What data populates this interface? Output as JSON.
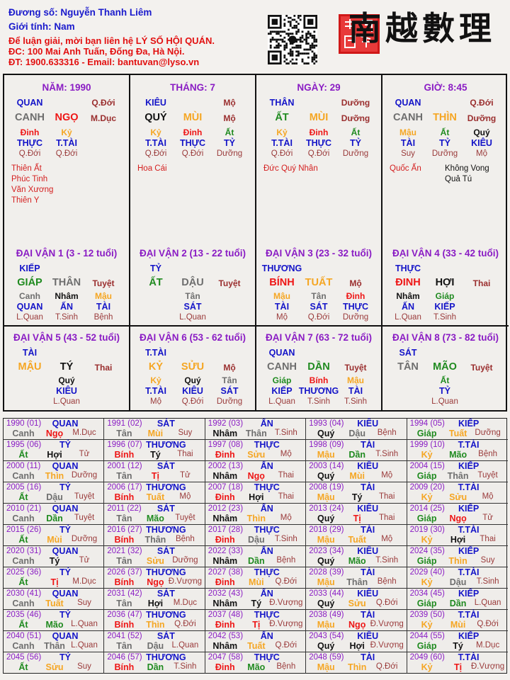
{
  "header": {
    "name_line": "Đương số: Nguyễn Thanh Liêm",
    "gender_line": "Giới tính:   Nam",
    "contact_line": "Để luận giải, mời bạn liên hệ LÝ SỐ HỘI QUÁN.",
    "address_line": "ĐC: 100 Mai Anh Tuấn, Đống Đa, Hà Nội.",
    "phone_line": "ĐT: 1900.633316 - Email: bantuvan@lyso.vn"
  },
  "logo": {
    "text": "南越數理",
    "qr_icon": "qr-code"
  },
  "element_colors": {
    "wood": "#1f8a1f",
    "fire": "#ee1515",
    "earth": "#f5a623",
    "metal": "#6e6e6e",
    "water": "#111111"
  },
  "pillars": [
    {
      "title": "NĂM: 1990",
      "god": "QUAN",
      "god_stage": "Q.Đới",
      "stem": "CANH",
      "branch": "NGỌ",
      "branch_stage": "M.Dục",
      "hidden": [
        {
          "stem": "Đinh",
          "god": "THỰC",
          "stage": "Q.Đới"
        },
        {
          "stem": "Kỷ",
          "god": "T.TÀI",
          "stage": "Q.Đới"
        }
      ],
      "stars": [
        "Thiên Ất",
        "Phúc Tinh",
        "Văn Xương",
        "Thiên Y"
      ],
      "stars_right": []
    },
    {
      "title": "THÁNG: 7",
      "god": "KIÊU",
      "god_stage": "Mộ",
      "stem": "QUÝ",
      "branch": "MÙI",
      "branch_stage": "Mộ",
      "hidden": [
        {
          "stem": "Kỷ",
          "god": "T.TÀI",
          "stage": "Q.Đới"
        },
        {
          "stem": "Đinh",
          "god": "THỰC",
          "stage": "Q.Đới"
        },
        {
          "stem": "Ất",
          "god": "TỶ",
          "stage": "Dưỡng"
        }
      ],
      "stars": [
        "Hoa Cái"
      ],
      "stars_right": []
    },
    {
      "title": "NGÀY: 29",
      "god": "THÂN",
      "god_stage": "Dưỡng",
      "stem": "ẤT",
      "branch": "MÙI",
      "branch_stage": "Dưỡng",
      "hidden": [
        {
          "stem": "Kỷ",
          "god": "T.TÀI",
          "stage": "Q.Đới"
        },
        {
          "stem": "Đinh",
          "god": "THỰC",
          "stage": "Q.Đới"
        },
        {
          "stem": "Ất",
          "god": "TỶ",
          "stage": "Dưỡng"
        }
      ],
      "stars": [
        "Đức Quý Nhân"
      ],
      "stars_right": []
    },
    {
      "title": "GIỜ: 8:45",
      "god": "QUAN",
      "god_stage": "Q.Đới",
      "stem": "CANH",
      "branch": "THÌN",
      "branch_stage": "Dưỡng",
      "hidden": [
        {
          "stem": "Mậu",
          "god": "TÀI",
          "stage": "Suy"
        },
        {
          "stem": "Ất",
          "god": "TỶ",
          "stage": "Dưỡng"
        },
        {
          "stem": "Quý",
          "god": "KIÊU",
          "stage": "Mộ"
        }
      ],
      "stars": [
        "Quốc Ấn"
      ],
      "stars_right": [
        "Không Vong",
        "Quả Tú"
      ]
    }
  ],
  "dai_van": [
    {
      "title": "ĐẠI VẬN 1 (3 - 12 tuổi)",
      "god": "KIẾP",
      "stem": "GIÁP",
      "branch": "THÂN",
      "branch_stage": "Tuyệt",
      "hidden": [
        {
          "stem": "Canh",
          "god": "QUAN",
          "stage": "L.Quan"
        },
        {
          "stem": "Nhâm",
          "god": "ẤN",
          "stage": "T.Sinh"
        },
        {
          "stem": "Mậu",
          "god": "TÀI",
          "stage": "Bệnh"
        }
      ]
    },
    {
      "title": "ĐẠI VẬN 2 (13 - 22 tuổi)",
      "god": "TỶ",
      "stem": "ẤT",
      "branch": "DẬU",
      "branch_stage": "Tuyệt",
      "hidden": [
        {
          "stem": "Tân",
          "god": "SÁT",
          "stage": "L.Quan"
        }
      ]
    },
    {
      "title": "ĐẠI VẬN 3 (23 - 32 tuổi)",
      "god": "THƯƠNG",
      "stem": "BÍNH",
      "branch": "TUẤT",
      "branch_stage": "Mộ",
      "hidden": [
        {
          "stem": "Mậu",
          "god": "TÀI",
          "stage": "Mộ"
        },
        {
          "stem": "Tân",
          "god": "SÁT",
          "stage": "Q.Đới"
        },
        {
          "stem": "Đinh",
          "god": "THỰC",
          "stage": "Dưỡng"
        }
      ]
    },
    {
      "title": "ĐẠI VẬN 4 (33 - 42 tuổi)",
      "god": "THỰC",
      "stem": "ĐINH",
      "branch": "HỢI",
      "branch_stage": "Thai",
      "hidden": [
        {
          "stem": "Nhâm",
          "god": "ẤN",
          "stage": "L.Quan"
        },
        {
          "stem": "Giáp",
          "god": "KIẾP",
          "stage": "T.Sinh"
        }
      ]
    },
    {
      "title": "ĐẠI VẬN 5 (43 - 52 tuổi)",
      "god": "TÀI",
      "stem": "MẬU",
      "branch": "TÝ",
      "branch_stage": "Thai",
      "hidden": [
        {
          "stem": "Quý",
          "god": "KIÊU",
          "stage": "L.Quan"
        }
      ]
    },
    {
      "title": "ĐẠI VẬN 6 (53 - 62 tuổi)",
      "god": "T.TÀI",
      "stem": "KỶ",
      "branch": "SỬU",
      "branch_stage": "Mộ",
      "hidden": [
        {
          "stem": "Kỷ",
          "god": "T.TÀI",
          "stage": "Mộ"
        },
        {
          "stem": "Quý",
          "god": "KIÊU",
          "stage": "Q.Đới"
        },
        {
          "stem": "Tân",
          "god": "SÁT",
          "stage": "Dưỡng"
        }
      ]
    },
    {
      "title": "ĐẠI VẬN 7 (63 - 72 tuổi)",
      "god": "QUAN",
      "stem": "CANH",
      "branch": "DẦN",
      "branch_stage": "Tuyệt",
      "hidden": [
        {
          "stem": "Giáp",
          "god": "KIẾP",
          "stage": "L.Quan"
        },
        {
          "stem": "Bính",
          "god": "THƯƠNG",
          "stage": "T.Sinh"
        },
        {
          "stem": "Mậu",
          "god": "TÀI",
          "stage": "T.Sinh"
        }
      ]
    },
    {
      "title": "ĐẠI VẬN 8 (73 - 82 tuổi)",
      "god": "SÁT",
      "stem": "TÂN",
      "branch": "MÃO",
      "branch_stage": "Tuyệt",
      "hidden": [
        {
          "stem": "Ất",
          "god": "TỶ",
          "stage": "L.Quan"
        }
      ]
    }
  ],
  "years": [
    [
      "1990 (01)",
      "QUAN",
      "Canh",
      "Ngọ",
      "M.Dục"
    ],
    [
      "1991 (02)",
      "SÁT",
      "Tân",
      "Mùi",
      "Suy"
    ],
    [
      "1992 (03)",
      "ẤN",
      "Nhâm",
      "Thân",
      "T.Sinh"
    ],
    [
      "1993 (04)",
      "KIÊU",
      "Quý",
      "Dậu",
      "Bệnh"
    ],
    [
      "1994 (05)",
      "KIẾP",
      "Giáp",
      "Tuất",
      "Dưỡng"
    ],
    [
      "1995 (06)",
      "TỶ",
      "Ất",
      "Hợi",
      "Tử"
    ],
    [
      "1996 (07)",
      "THƯƠNG",
      "Bính",
      "Tý",
      "Thai"
    ],
    [
      "1997 (08)",
      "THỰC",
      "Đinh",
      "Sửu",
      "Mộ"
    ],
    [
      "1998 (09)",
      "TÀI",
      "Mậu",
      "Dần",
      "T.Sinh"
    ],
    [
      "1999 (10)",
      "T.TÀI",
      "Kỷ",
      "Mão",
      "Bệnh"
    ],
    [
      "2000 (11)",
      "QUAN",
      "Canh",
      "Thìn",
      "Dưỡng"
    ],
    [
      "2001 (12)",
      "SÁT",
      "Tân",
      "Tị",
      "Tử"
    ],
    [
      "2002 (13)",
      "ẤN",
      "Nhâm",
      "Ngọ",
      "Thai"
    ],
    [
      "2003 (14)",
      "KIÊU",
      "Quý",
      "Mùi",
      "Mộ"
    ],
    [
      "2004 (15)",
      "KIẾP",
      "Giáp",
      "Thân",
      "Tuyệt"
    ],
    [
      "2005 (16)",
      "TỶ",
      "Ất",
      "Dậu",
      "Tuyệt"
    ],
    [
      "2006 (17)",
      "THƯƠNG",
      "Bính",
      "Tuất",
      "Mộ"
    ],
    [
      "2007 (18)",
      "THỰC",
      "Đinh",
      "Hợi",
      "Thai"
    ],
    [
      "2008 (19)",
      "TÀI",
      "Mậu",
      "Tý",
      "Thai"
    ],
    [
      "2009 (20)",
      "T.TÀI",
      "Kỷ",
      "Sửu",
      "Mộ"
    ],
    [
      "2010 (21)",
      "QUAN",
      "Canh",
      "Dần",
      "Tuyệt"
    ],
    [
      "2011 (22)",
      "SÁT",
      "Tân",
      "Mão",
      "Tuyệt"
    ],
    [
      "2012 (23)",
      "ẤN",
      "Nhâm",
      "Thìn",
      "Mộ"
    ],
    [
      "2013 (24)",
      "KIÊU",
      "Quý",
      "Tị",
      "Thai"
    ],
    [
      "2014 (25)",
      "KIẾP",
      "Giáp",
      "Ngọ",
      "Tử"
    ],
    [
      "2015 (26)",
      "TỶ",
      "Ất",
      "Mùi",
      "Dưỡng"
    ],
    [
      "2016 (27)",
      "THƯƠNG",
      "Bính",
      "Thân",
      "Bệnh"
    ],
    [
      "2017 (28)",
      "THỰC",
      "Đinh",
      "Dậu",
      "T.Sinh"
    ],
    [
      "2018 (29)",
      "TÀI",
      "Mậu",
      "Tuất",
      "Mộ"
    ],
    [
      "2019 (30)",
      "T.TÀI",
      "Kỷ",
      "Hợi",
      "Thai"
    ],
    [
      "2020 (31)",
      "QUAN",
      "Canh",
      "Tý",
      "Tử"
    ],
    [
      "2021 (32)",
      "SÁT",
      "Tân",
      "Sửu",
      "Dưỡng"
    ],
    [
      "2022 (33)",
      "ẤN",
      "Nhâm",
      "Dần",
      "Bệnh"
    ],
    [
      "2023 (34)",
      "KIÊU",
      "Quý",
      "Mão",
      "T.Sinh"
    ],
    [
      "2024 (35)",
      "KIẾP",
      "Giáp",
      "Thìn",
      "Suy"
    ],
    [
      "2025 (36)",
      "TỶ",
      "Ất",
      "Tị",
      "M.Dục"
    ],
    [
      "2026 (37)",
      "THƯƠNG",
      "Bính",
      "Ngọ",
      "Đ.Vượng"
    ],
    [
      "2027 (38)",
      "THỰC",
      "Đinh",
      "Mùi",
      "Q.Đới"
    ],
    [
      "2028 (39)",
      "TÀI",
      "Mậu",
      "Thân",
      "Bệnh"
    ],
    [
      "2029 (40)",
      "T.TÀI",
      "Kỷ",
      "Dậu",
      "T.Sinh"
    ],
    [
      "2030 (41)",
      "QUAN",
      "Canh",
      "Tuất",
      "Suy"
    ],
    [
      "2031 (42)",
      "SÁT",
      "Tân",
      "Hợi",
      "M.Dục"
    ],
    [
      "2032 (43)",
      "ẤN",
      "Nhâm",
      "Tý",
      "Đ.Vượng"
    ],
    [
      "2033 (44)",
      "KIÊU",
      "Quý",
      "Sửu",
      "Q.Đới"
    ],
    [
      "2034 (45)",
      "KIẾP",
      "Giáp",
      "Dần",
      "L.Quan"
    ],
    [
      "2035 (46)",
      "TỶ",
      "Ất",
      "Mão",
      "L.Quan"
    ],
    [
      "2036 (47)",
      "THƯƠNG",
      "Bính",
      "Thìn",
      "Q.Đới"
    ],
    [
      "2037 (48)",
      "THỰC",
      "Đinh",
      "Tị",
      "Đ.Vượng"
    ],
    [
      "2038 (49)",
      "TÀI",
      "Mậu",
      "Ngọ",
      "Đ.Vượng"
    ],
    [
      "2039 (50)",
      "T.TÀI",
      "Kỷ",
      "Mùi",
      "Q.Đới"
    ],
    [
      "2040 (51)",
      "QUAN",
      "Canh",
      "Thân",
      "L.Quan"
    ],
    [
      "2041 (52)",
      "SÁT",
      "Tân",
      "Dậu",
      "L.Quan"
    ],
    [
      "2042 (53)",
      "ẤN",
      "Nhâm",
      "Tuất",
      "Q.Đới"
    ],
    [
      "2043 (54)",
      "KIÊU",
      "Quý",
      "Hợi",
      "Đ.Vượng"
    ],
    [
      "2044 (55)",
      "KIẾP",
      "Giáp",
      "Tý",
      "M.Dục"
    ],
    [
      "2045 (56)",
      "TỶ",
      "Ất",
      "Sửu",
      "Suy"
    ],
    [
      "2046 (57)",
      "THƯƠNG",
      "Bính",
      "Dần",
      "T.Sinh"
    ],
    [
      "2047 (58)",
      "THỰC",
      "Đinh",
      "Mão",
      "Bệnh"
    ],
    [
      "2048 (59)",
      "TÀI",
      "Mậu",
      "Thìn",
      "Q.Đới"
    ],
    [
      "2049 (60)",
      "T.TÀI",
      "Kỷ",
      "Tị",
      "Đ.Vượng"
    ]
  ]
}
